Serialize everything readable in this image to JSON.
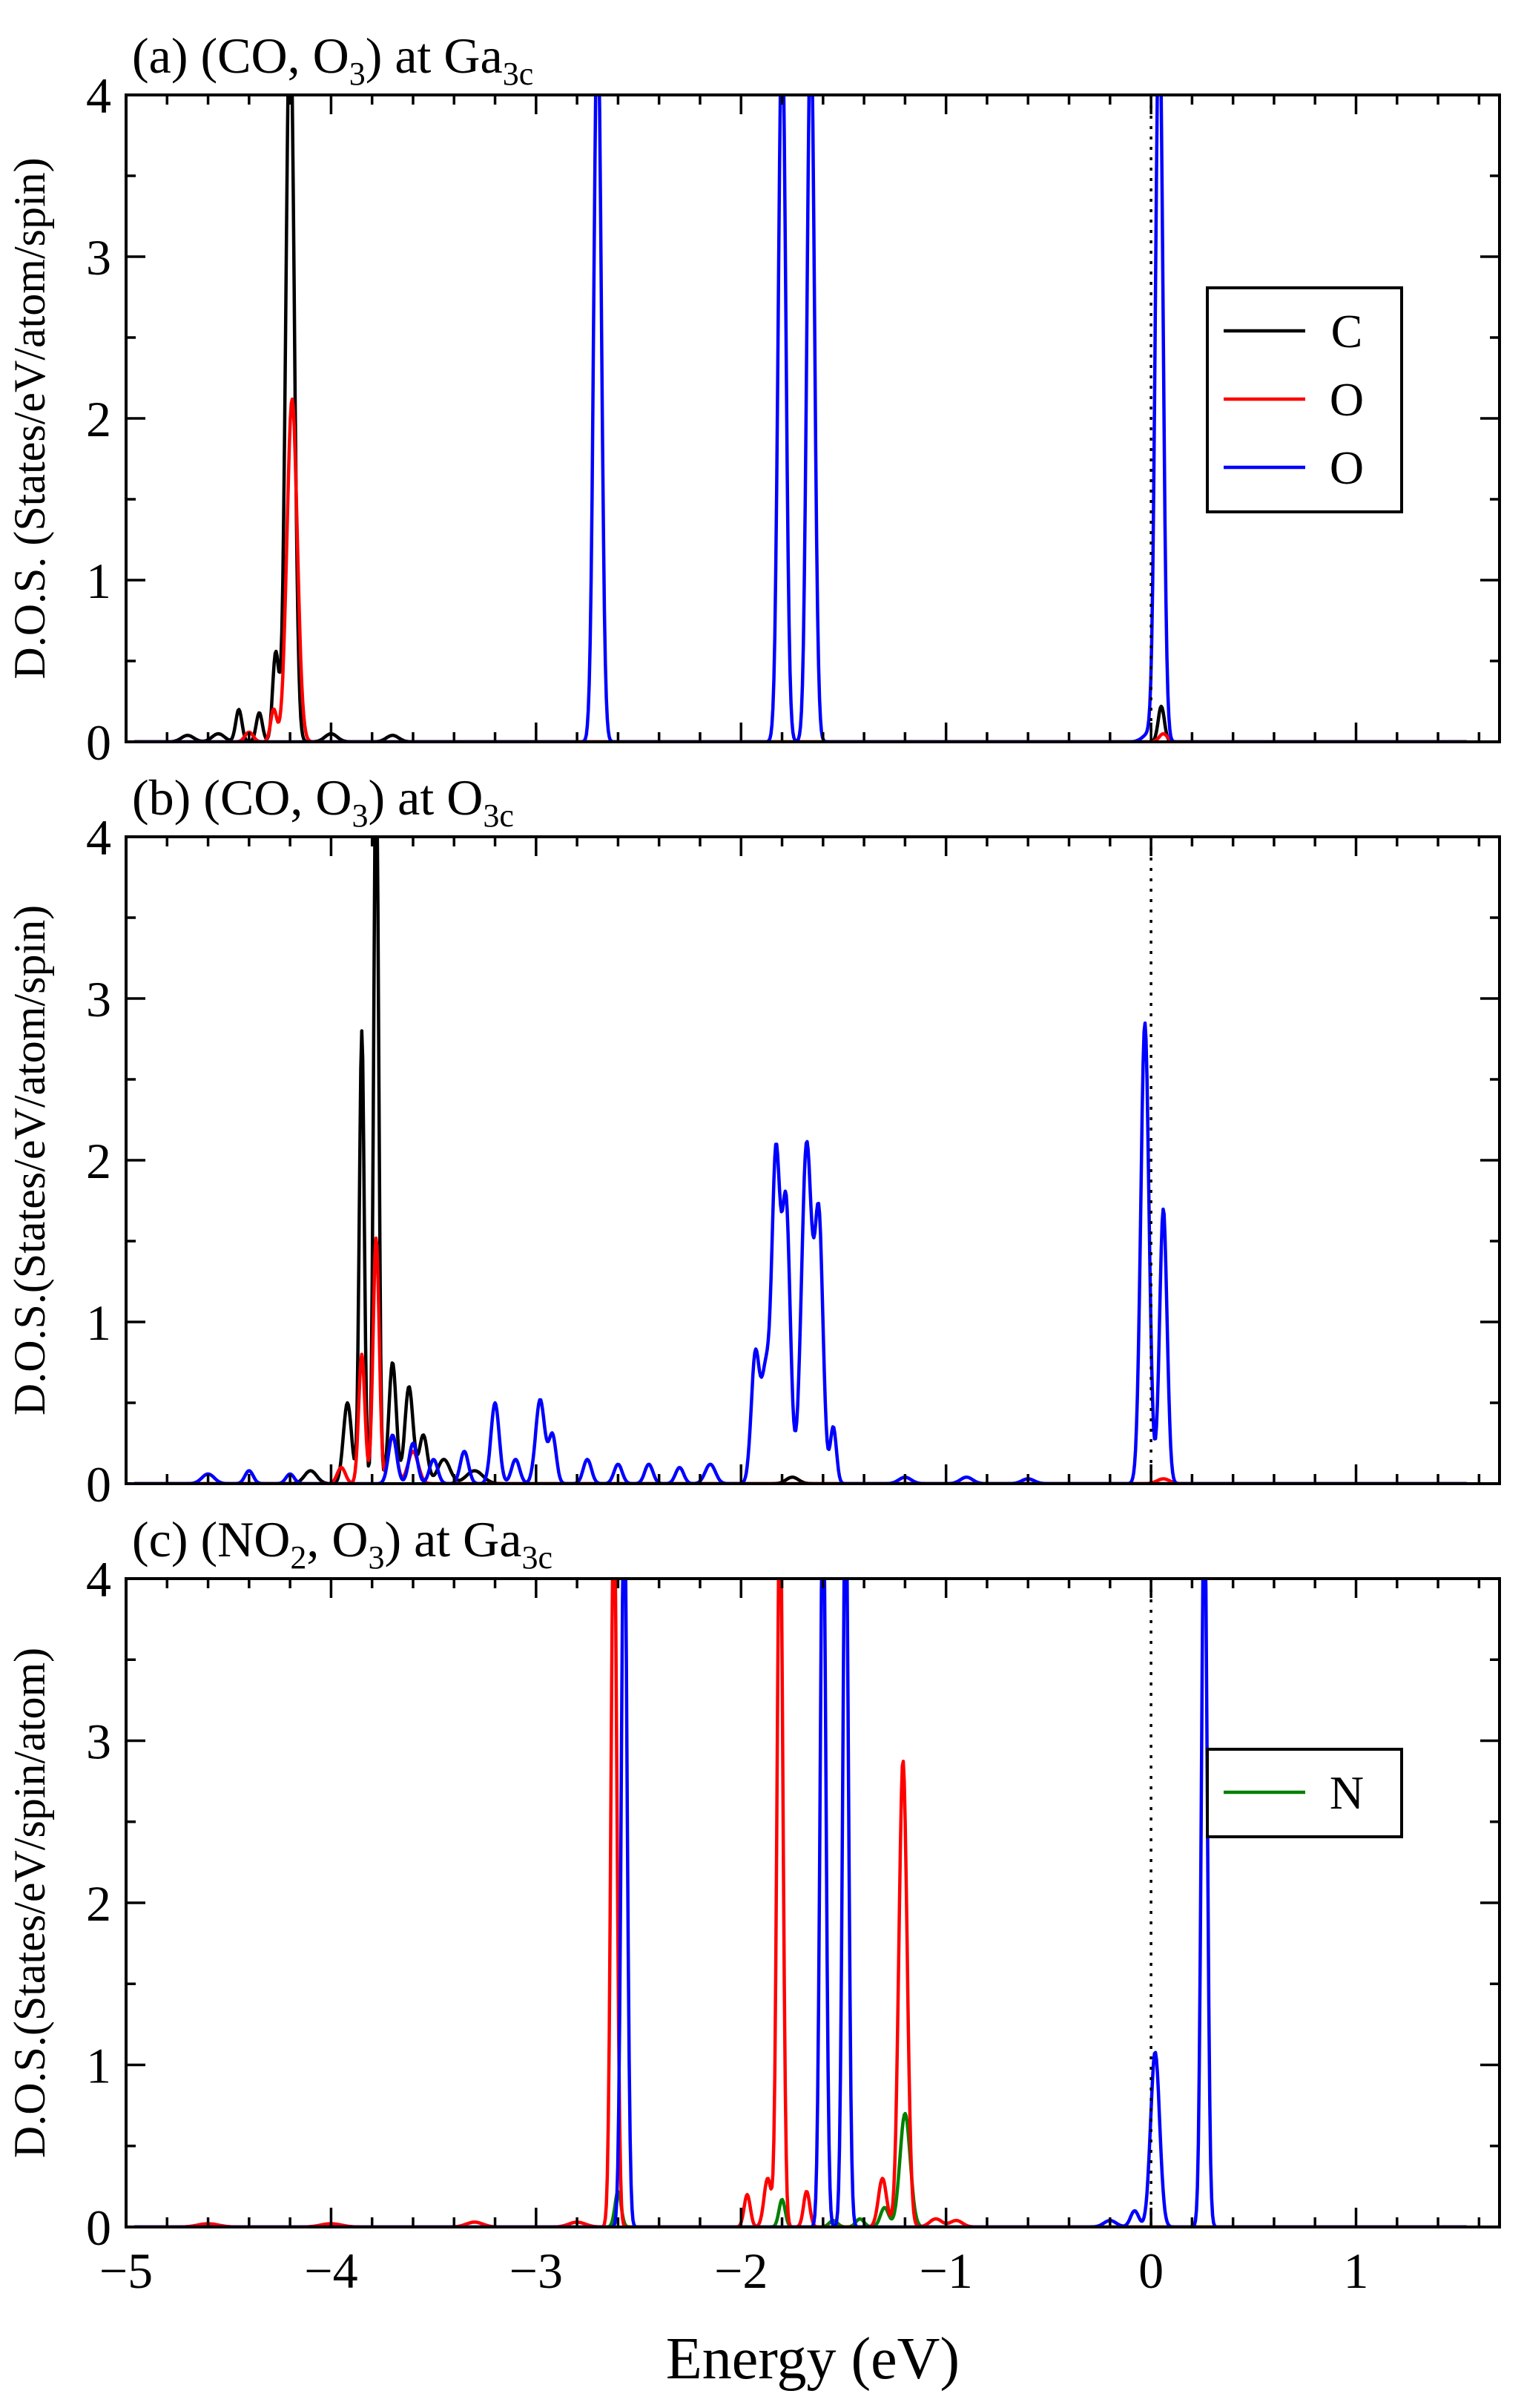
{
  "xlabel": "Energy (eV)",
  "chart_data": [
    {
      "type": "line",
      "panel_label": "(a)",
      "title_main": "(CO, O",
      "title_sub1": "3",
      "title_mid": ") at Ga",
      "title_sub2": "3c",
      "ylabel": "D.O.S. (States/eV/atom/spin)",
      "xlim": [
        -5,
        1.7
      ],
      "ylim": [
        0,
        4
      ],
      "x_ticks": [
        -5,
        -4,
        -3,
        -2,
        -1,
        0,
        1
      ],
      "y_ticks": [
        0,
        1,
        2,
        3,
        4
      ],
      "fermi_line_x": 0,
      "legend_position": "right",
      "legend": [
        {
          "label": "C",
          "color": "#000000"
        },
        {
          "label": "O",
          "color": "#ff0000"
        },
        {
          "label": "O",
          "color": "#0000ff"
        }
      ],
      "series": [
        {
          "name": "C",
          "color": "#000000",
          "baseline": 0.02,
          "peaks": [
            [
              -4.2,
              4.6,
              0.02
            ],
            [
              -4.27,
              0.55,
              0.015
            ],
            [
              -4.35,
              0.18,
              0.015
            ],
            [
              -4.45,
              0.2,
              0.015
            ],
            [
              -4.55,
              0.05,
              0.03
            ],
            [
              -4.7,
              0.04,
              0.03
            ],
            [
              -4.0,
              0.05,
              0.03
            ],
            [
              -3.7,
              0.04,
              0.03
            ],
            [
              0.05,
              0.22,
              0.015
            ]
          ]
        },
        {
          "name": "O",
          "color": "#ff0000",
          "baseline": 0.01,
          "peaks": [
            [
              -4.19,
              2.12,
              0.025
            ],
            [
              -4.28,
              0.2,
              0.015
            ],
            [
              -4.4,
              0.06,
              0.02
            ],
            [
              0.06,
              0.05,
              0.02
            ]
          ]
        },
        {
          "name": "O",
          "color": "#0000ff",
          "baseline": 0.0,
          "peaks": [
            [
              -2.7,
              4.6,
              0.018
            ],
            [
              -1.8,
              4.5,
              0.018
            ],
            [
              -1.66,
              4.5,
              0.018
            ],
            [
              0.04,
              4.6,
              0.018
            ],
            [
              -0.01,
              0.05,
              0.03
            ]
          ]
        }
      ]
    },
    {
      "type": "line",
      "panel_label": "(b)",
      "title_main": "(CO, O",
      "title_sub1": "3",
      "title_mid": ") at O",
      "title_sub2": "3c",
      "ylabel": "D.O.S.(States/eV/atom/spin)",
      "xlim": [
        -5,
        1.7
      ],
      "ylim": [
        0,
        4
      ],
      "x_ticks": [
        -5,
        -4,
        -3,
        -2,
        -1,
        0,
        1
      ],
      "y_ticks": [
        0,
        1,
        2,
        3,
        4
      ],
      "fermi_line_x": 0,
      "legend": [],
      "series": [
        {
          "name": "C",
          "color": "#000000",
          "baseline": 0.01,
          "peaks": [
            [
              -3.78,
              4.6,
              0.012
            ],
            [
              -3.85,
              2.8,
              0.012
            ],
            [
              -3.92,
              0.5,
              0.02
            ],
            [
              -3.7,
              0.75,
              0.018
            ],
            [
              -3.62,
              0.6,
              0.02
            ],
            [
              -3.55,
              0.3,
              0.02
            ],
            [
              -3.45,
              0.15,
              0.03
            ],
            [
              -3.3,
              0.08,
              0.04
            ],
            [
              -4.1,
              0.08,
              0.03
            ],
            [
              -1.75,
              0.04,
              0.03
            ]
          ]
        },
        {
          "name": "O",
          "color": "#ff0000",
          "baseline": 0.01,
          "peaks": [
            [
              -3.78,
              1.52,
              0.015
            ],
            [
              -3.85,
              0.8,
              0.015
            ],
            [
              -3.7,
              0.3,
              0.02
            ],
            [
              -3.6,
              0.2,
              0.025
            ],
            [
              -3.95,
              0.1,
              0.02
            ],
            [
              0.06,
              0.03,
              0.03
            ]
          ]
        },
        {
          "name": "O",
          "color": "#0000ff",
          "baseline": 0.03,
          "peaks": [
            [
              -1.83,
              2.0,
              0.02
            ],
            [
              -1.78,
              1.7,
              0.02
            ],
            [
              -1.68,
              2.1,
              0.025
            ],
            [
              -1.62,
              1.6,
              0.02
            ],
            [
              -1.93,
              0.8,
              0.02
            ],
            [
              -1.88,
              0.65,
              0.02
            ],
            [
              -1.55,
              0.35,
              0.015
            ],
            [
              -0.03,
              2.85,
              0.02
            ],
            [
              0.06,
              1.7,
              0.018
            ],
            [
              -3.2,
              0.5,
              0.02
            ],
            [
              -2.98,
              0.52,
              0.022
            ],
            [
              -2.92,
              0.3,
              0.018
            ],
            [
              -3.35,
              0.2,
              0.02
            ],
            [
              -3.1,
              0.15,
              0.02
            ],
            [
              -3.6,
              0.25,
              0.02
            ],
            [
              -3.5,
              0.15,
              0.02
            ],
            [
              -3.7,
              0.3,
              0.02
            ],
            [
              -2.75,
              0.15,
              0.02
            ],
            [
              -2.6,
              0.12,
              0.02
            ],
            [
              -2.45,
              0.12,
              0.02
            ],
            [
              -2.3,
              0.1,
              0.02
            ],
            [
              -2.15,
              0.12,
              0.025
            ],
            [
              -4.4,
              0.08,
              0.02
            ],
            [
              -4.6,
              0.06,
              0.03
            ],
            [
              -4.2,
              0.06,
              0.02
            ],
            [
              -1.2,
              0.04,
              0.03
            ],
            [
              -0.9,
              0.04,
              0.03
            ],
            [
              -0.6,
              0.03,
              0.03
            ]
          ]
        }
      ]
    },
    {
      "type": "line",
      "panel_label": "(c)",
      "title_main": "(NO",
      "title_sub1": "2",
      "title_mid": ", O",
      "title_sub2": "3",
      "title_end": ") at Ga",
      "title_sub3": "3c",
      "ylabel": "D.O.S.(States/eV/spin/atom)",
      "xlim": [
        -5,
        1.7
      ],
      "ylim": [
        0,
        4
      ],
      "x_ticks": [
        -5,
        -4,
        -3,
        -2,
        -1,
        0,
        1
      ],
      "y_ticks": [
        0,
        1,
        2,
        3,
        4
      ],
      "fermi_line_x": 0,
      "legend_position": "right",
      "legend": [
        {
          "label": "N",
          "color": "#008000"
        }
      ],
      "series": [
        {
          "name": "N",
          "color": "#008000",
          "baseline": 0.0,
          "peaks": [
            [
              -2.6,
              0.22,
              0.015
            ],
            [
              -1.8,
              0.17,
              0.015
            ],
            [
              -1.2,
              0.7,
              0.025
            ],
            [
              -1.3,
              0.12,
              0.02
            ],
            [
              -1.42,
              0.05,
              0.02
            ],
            [
              -1.55,
              0.04,
              0.02
            ]
          ]
        },
        {
          "name": "O",
          "color": "#ff0000",
          "baseline": 0.01,
          "peaks": [
            [
              -2.62,
              4.6,
              0.014
            ],
            [
              -1.81,
              4.6,
              0.014
            ],
            [
              -1.87,
              0.3,
              0.018
            ],
            [
              -1.68,
              0.22,
              0.015
            ],
            [
              -1.97,
              0.2,
              0.015
            ],
            [
              -1.21,
              2.88,
              0.02
            ],
            [
              -1.31,
              0.3,
              0.02
            ],
            [
              -1.05,
              0.05,
              0.03
            ],
            [
              -0.95,
              0.04,
              0.03
            ],
            [
              -2.8,
              0.03,
              0.04
            ],
            [
              -3.3,
              0.03,
              0.04
            ],
            [
              -4.0,
              0.02,
              0.05
            ],
            [
              -4.6,
              0.02,
              0.05
            ]
          ]
        },
        {
          "name": "O",
          "color": "#0000ff",
          "baseline": 0.0,
          "peaks": [
            [
              -2.57,
              4.6,
              0.014
            ],
            [
              -1.6,
              4.6,
              0.014
            ],
            [
              -1.49,
              4.6,
              0.014
            ],
            [
              0.02,
              1.08,
              0.022
            ],
            [
              -0.08,
              0.1,
              0.02
            ],
            [
              -0.2,
              0.04,
              0.03
            ],
            [
              0.26,
              4.6,
              0.014
            ]
          ]
        }
      ]
    }
  ]
}
